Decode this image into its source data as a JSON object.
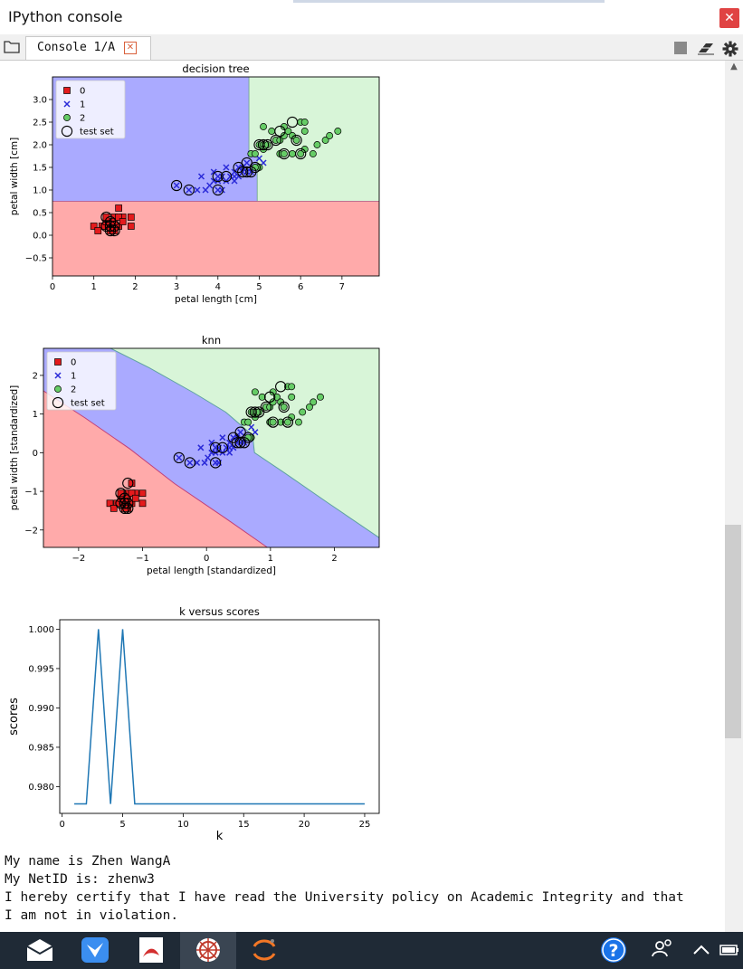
{
  "window": {
    "title": "IPython console",
    "close_glyph": "✕"
  },
  "tabs": [
    {
      "label": "Console 1/A",
      "close_glyph": "✕"
    }
  ],
  "toolbar": {
    "icons": [
      "folder-icon",
      "stop-icon",
      "eraser-icon",
      "gear-icon"
    ]
  },
  "chart_data": [
    {
      "type": "scatter",
      "title": "decision tree",
      "xlabel": "petal length [cm]",
      "ylabel": "petal width [cm]",
      "xlim": [
        0,
        7.9
      ],
      "ylim": [
        -0.9,
        3.5
      ],
      "xticks": [
        0,
        1,
        2,
        3,
        4,
        5,
        6,
        7
      ],
      "yticks": [
        -0.5,
        0.0,
        0.5,
        1.0,
        1.5,
        2.0,
        2.5,
        3.0
      ],
      "ytick_labels": [
        "−0.5",
        "0.0",
        "0.5",
        "1.0",
        "1.5",
        "2.0",
        "2.5",
        "3.0"
      ],
      "legend": {
        "placement": "top-left",
        "entries": [
          "0",
          "1",
          "2",
          "test set"
        ]
      },
      "region_colors": {
        "0": "#ffaaaa",
        "1": "#aaaaff",
        "2": "#d8f5d8"
      },
      "series": [
        {
          "name": "0",
          "marker": "square",
          "color": "#e41a1c",
          "points": [
            [
              1.3,
              0.2
            ],
            [
              1.4,
              0.2
            ],
            [
              1.5,
              0.2
            ],
            [
              1.4,
              0.3
            ],
            [
              1.6,
              0.2
            ],
            [
              1.5,
              0.4
            ],
            [
              1.2,
              0.2
            ],
            [
              1.7,
              0.4
            ],
            [
              1.9,
              0.4
            ],
            [
              1.0,
              0.2
            ],
            [
              1.3,
              0.3
            ],
            [
              1.5,
              0.1
            ],
            [
              1.6,
              0.6
            ],
            [
              1.4,
              0.1
            ],
            [
              1.9,
              0.2
            ],
            [
              1.5,
              0.3
            ],
            [
              1.6,
              0.4
            ],
            [
              1.1,
              0.1
            ],
            [
              1.3,
              0.4
            ],
            [
              1.7,
              0.3
            ]
          ]
        },
        {
          "name": "1",
          "marker": "x",
          "color": "#2a2ad8",
          "points": [
            [
              3.0,
              1.1
            ],
            [
              3.3,
              1.0
            ],
            [
              3.5,
              1.0
            ],
            [
              3.6,
              1.3
            ],
            [
              3.7,
              1.0
            ],
            [
              3.8,
              1.1
            ],
            [
              3.9,
              1.2
            ],
            [
              3.9,
              1.4
            ],
            [
              4.0,
              1.0
            ],
            [
              4.0,
              1.3
            ],
            [
              4.1,
              1.0
            ],
            [
              4.1,
              1.3
            ],
            [
              4.2,
              1.2
            ],
            [
              4.2,
              1.5
            ],
            [
              4.3,
              1.3
            ],
            [
              4.4,
              1.2
            ],
            [
              4.4,
              1.4
            ],
            [
              4.5,
              1.5
            ],
            [
              4.5,
              1.3
            ],
            [
              4.6,
              1.4
            ],
            [
              4.6,
              1.5
            ],
            [
              4.7,
              1.4
            ],
            [
              4.7,
              1.6
            ],
            [
              4.8,
              1.4
            ],
            [
              4.8,
              1.8
            ],
            [
              4.9,
              1.5
            ],
            [
              5.0,
              1.7
            ],
            [
              5.1,
              1.6
            ],
            [
              4.4,
              1.3
            ],
            [
              4.0,
              1.2
            ]
          ]
        },
        {
          "name": "2",
          "marker": "circle",
          "color": "#66cc66",
          "points": [
            [
              4.8,
              1.8
            ],
            [
              4.9,
              1.8
            ],
            [
              5.0,
              2.0
            ],
            [
              5.1,
              2.0
            ],
            [
              5.1,
              1.9
            ],
            [
              5.2,
              2.0
            ],
            [
              5.3,
              2.3
            ],
            [
              5.4,
              2.1
            ],
            [
              5.5,
              2.1
            ],
            [
              5.5,
              1.8
            ],
            [
              5.6,
              2.2
            ],
            [
              5.6,
              1.8
            ],
            [
              5.7,
              2.3
            ],
            [
              5.8,
              2.2
            ],
            [
              5.8,
              1.8
            ],
            [
              5.9,
              2.1
            ],
            [
              6.0,
              2.5
            ],
            [
              6.0,
              1.8
            ],
            [
              6.1,
              2.3
            ],
            [
              6.1,
              1.9
            ],
            [
              6.3,
              1.8
            ],
            [
              6.4,
              2.0
            ],
            [
              6.6,
              2.1
            ],
            [
              6.7,
              2.2
            ],
            [
              6.9,
              2.3
            ],
            [
              6.1,
              2.5
            ],
            [
              5.1,
              2.4
            ],
            [
              5.6,
              2.4
            ],
            [
              5.0,
              1.5
            ],
            [
              4.9,
              1.5
            ]
          ]
        },
        {
          "name": "test set",
          "marker": "open-circle",
          "color": "#000000",
          "points": [
            [
              1.3,
              0.2
            ],
            [
              1.4,
              0.2
            ],
            [
              1.5,
              0.2
            ],
            [
              1.4,
              0.3
            ],
            [
              1.5,
              0.1
            ],
            [
              1.3,
              0.4
            ],
            [
              1.4,
              0.1
            ],
            [
              3.0,
              1.1
            ],
            [
              3.3,
              1.0
            ],
            [
              4.0,
              1.0
            ],
            [
              4.0,
              1.3
            ],
            [
              4.2,
              1.3
            ],
            [
              4.5,
              1.5
            ],
            [
              4.6,
              1.4
            ],
            [
              4.7,
              1.4
            ],
            [
              4.8,
              1.4
            ],
            [
              4.7,
              1.6
            ],
            [
              4.9,
              1.5
            ],
            [
              5.0,
              2.0
            ],
            [
              5.1,
              2.0
            ],
            [
              5.2,
              2.0
            ],
            [
              5.4,
              2.1
            ],
            [
              5.5,
              2.3
            ],
            [
              5.8,
              2.5
            ],
            [
              5.6,
              1.8
            ],
            [
              6.0,
              1.8
            ],
            [
              5.9,
              2.1
            ]
          ]
        }
      ]
    },
    {
      "type": "scatter",
      "title": "knn",
      "xlabel": "petal length [standardized]",
      "ylabel": "petal width [standardized]",
      "xlim": [
        -2.55,
        2.7
      ],
      "ylim": [
        -2.45,
        2.7
      ],
      "xticks": [
        -2,
        -1,
        0,
        1,
        2
      ],
      "xtick_labels": [
        "−2",
        "−1",
        "0",
        "1",
        "2"
      ],
      "yticks": [
        -2,
        -1,
        0,
        1,
        2
      ],
      "ytick_labels": [
        "−2",
        "−1",
        "0",
        "1",
        "2"
      ],
      "legend": {
        "placement": "top-left",
        "entries": [
          "0",
          "1",
          "2",
          "test set"
        ]
      },
      "region_colors": {
        "0": "#ffaaaa",
        "1": "#aaaaff",
        "2": "#d8f5d8"
      },
      "series": [
        {
          "name": "0",
          "marker": "square",
          "color": "#e41a1c",
          "points": [
            [
              -1.34,
              -1.31
            ],
            [
              -1.28,
              -1.31
            ],
            [
              -1.23,
              -1.31
            ],
            [
              -1.28,
              -1.18
            ],
            [
              -1.17,
              -1.31
            ],
            [
              -1.23,
              -1.05
            ],
            [
              -1.4,
              -1.31
            ],
            [
              -1.11,
              -1.05
            ],
            [
              -1.0,
              -1.05
            ],
            [
              -1.51,
              -1.31
            ],
            [
              -1.34,
              -1.18
            ],
            [
              -1.23,
              -1.44
            ],
            [
              -1.17,
              -0.79
            ],
            [
              -1.28,
              -1.44
            ],
            [
              -1.0,
              -1.31
            ],
            [
              -1.23,
              -1.18
            ],
            [
              -1.17,
              -1.05
            ],
            [
              -1.45,
              -1.44
            ],
            [
              -1.34,
              -1.05
            ],
            [
              -1.11,
              -1.18
            ]
          ]
        },
        {
          "name": "1",
          "marker": "x",
          "color": "#2a2ad8",
          "points": [
            [
              -0.43,
              -0.13
            ],
            [
              -0.26,
              -0.26
            ],
            [
              -0.15,
              -0.26
            ],
            [
              -0.09,
              0.13
            ],
            [
              -0.03,
              -0.26
            ],
            [
              0.02,
              -0.13
            ],
            [
              0.08,
              0.0
            ],
            [
              0.08,
              0.26
            ],
            [
              0.14,
              -0.26
            ],
            [
              0.14,
              0.13
            ],
            [
              0.19,
              -0.26
            ],
            [
              0.19,
              0.13
            ],
            [
              0.25,
              0.0
            ],
            [
              0.25,
              0.39
            ],
            [
              0.31,
              0.13
            ],
            [
              0.36,
              0.0
            ],
            [
              0.36,
              0.26
            ],
            [
              0.42,
              0.39
            ],
            [
              0.42,
              0.13
            ],
            [
              0.48,
              0.26
            ],
            [
              0.48,
              0.39
            ],
            [
              0.53,
              0.26
            ],
            [
              0.53,
              0.53
            ],
            [
              0.59,
              0.26
            ],
            [
              0.59,
              0.79
            ],
            [
              0.65,
              0.39
            ],
            [
              0.7,
              0.66
            ],
            [
              0.76,
              0.53
            ],
            [
              0.36,
              0.13
            ],
            [
              0.14,
              0.0
            ]
          ]
        },
        {
          "name": "2",
          "marker": "circle",
          "color": "#66cc66",
          "points": [
            [
              0.59,
              0.79
            ],
            [
              0.65,
              0.79
            ],
            [
              0.7,
              1.05
            ],
            [
              0.76,
              1.05
            ],
            [
              0.76,
              0.92
            ],
            [
              0.82,
              1.05
            ],
            [
              0.87,
              1.44
            ],
            [
              0.93,
              1.18
            ],
            [
              0.99,
              1.18
            ],
            [
              0.99,
              0.79
            ],
            [
              1.04,
              1.31
            ],
            [
              1.04,
              0.79
            ],
            [
              1.1,
              1.44
            ],
            [
              1.16,
              1.31
            ],
            [
              1.16,
              0.79
            ],
            [
              1.21,
              1.18
            ],
            [
              1.27,
              1.71
            ],
            [
              1.27,
              0.79
            ],
            [
              1.33,
              1.44
            ],
            [
              1.33,
              0.92
            ],
            [
              1.44,
              0.79
            ],
            [
              1.5,
              1.05
            ],
            [
              1.61,
              1.18
            ],
            [
              1.67,
              1.31
            ],
            [
              1.78,
              1.44
            ],
            [
              1.33,
              1.71
            ],
            [
              0.76,
              1.57
            ],
            [
              1.04,
              1.57
            ],
            [
              0.7,
              0.39
            ],
            [
              0.65,
              0.39
            ]
          ]
        },
        {
          "name": "test set",
          "marker": "open-circle",
          "color": "#000000",
          "points": [
            [
              -1.34,
              -1.31
            ],
            [
              -1.28,
              -1.31
            ],
            [
              -1.23,
              -1.31
            ],
            [
              -1.28,
              -1.18
            ],
            [
              -1.23,
              -1.44
            ],
            [
              -1.34,
              -1.05
            ],
            [
              -1.28,
              -1.44
            ],
            [
              -1.23,
              -0.79
            ],
            [
              -0.43,
              -0.13
            ],
            [
              -0.26,
              -0.26
            ],
            [
              0.14,
              -0.26
            ],
            [
              0.14,
              0.13
            ],
            [
              0.25,
              0.13
            ],
            [
              0.42,
              0.39
            ],
            [
              0.48,
              0.26
            ],
            [
              0.53,
              0.26
            ],
            [
              0.59,
              0.26
            ],
            [
              0.53,
              0.53
            ],
            [
              0.65,
              0.39
            ],
            [
              0.7,
              1.05
            ],
            [
              0.76,
              1.05
            ],
            [
              0.82,
              1.05
            ],
            [
              0.93,
              1.18
            ],
            [
              0.99,
              1.44
            ],
            [
              1.16,
              1.71
            ],
            [
              1.04,
              0.79
            ],
            [
              1.27,
              0.79
            ],
            [
              1.21,
              1.18
            ]
          ]
        }
      ]
    },
    {
      "type": "line",
      "title": "k versus scores",
      "xlabel": "k",
      "ylabel": "scores",
      "xlim": [
        -0.2,
        26.2
      ],
      "ylim": [
        0.9766,
        1.0012
      ],
      "xticks": [
        0,
        5,
        10,
        15,
        20,
        25
      ],
      "yticks": [
        0.98,
        0.985,
        0.99,
        0.995,
        1.0
      ],
      "ytick_labels": [
        "0.980",
        "0.985",
        "0.990",
        "0.995",
        "1.000"
      ],
      "series": [
        {
          "color": "#1f77b4",
          "x": [
            1,
            2,
            3,
            4,
            5,
            6,
            7,
            8,
            9,
            10,
            11,
            12,
            13,
            14,
            15,
            16,
            17,
            18,
            19,
            20,
            21,
            22,
            23,
            24,
            25
          ],
          "y": [
            0.9778,
            0.9778,
            1.0,
            0.9778,
            1.0,
            0.9778,
            0.9778,
            0.9778,
            0.9778,
            0.9778,
            0.9778,
            0.9778,
            0.9778,
            0.9778,
            0.9778,
            0.9778,
            0.9778,
            0.9778,
            0.9778,
            0.9778,
            0.9778,
            0.9778,
            0.9778,
            0.9778,
            0.9778
          ]
        }
      ]
    }
  ],
  "console_output": {
    "line1": "My name is Zhen WangA",
    "line2": "My NetID is: zhenw3",
    "line3": "I hereby certify that I have read the University policy on Academic Integrity and that",
    "line4": "I am not in violation."
  },
  "taskbar": {
    "icons": [
      "mail-icon",
      "feishu-icon",
      "acrobat-icon",
      "spider-icon",
      "jupyter-icon",
      "help-icon",
      "people-icon",
      "chevron-up-icon",
      "battery-icon"
    ]
  },
  "colors": {
    "taskbar": "#1f2a36",
    "close": "#e04343",
    "accent": "#1a73e8"
  }
}
